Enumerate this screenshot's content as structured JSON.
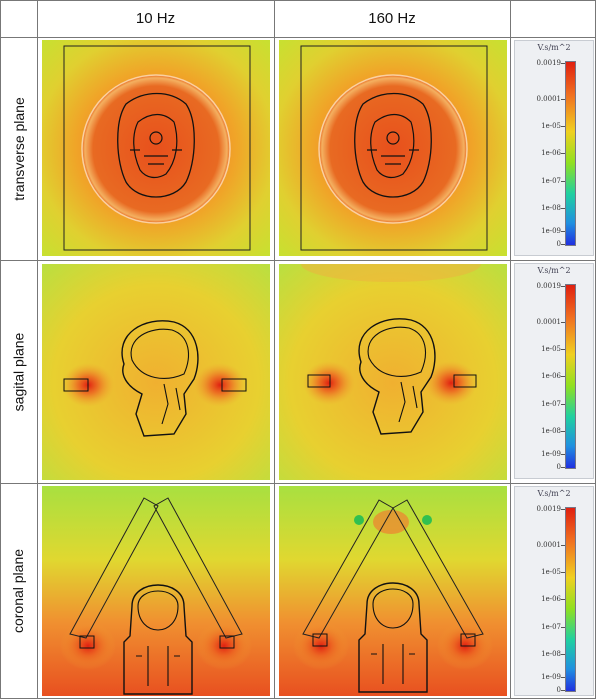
{
  "header": {
    "columns": [
      "10 Hz",
      "160 Hz"
    ]
  },
  "rows": [
    "transverse plane",
    "sagital plane",
    "coronal plane"
  ],
  "colorbar": {
    "unit": "V.s/m^2",
    "ticks": [
      "0.0019",
      "0.0001",
      "1e-05",
      "1e-06",
      "1e-07",
      "1e-08",
      "1e-09",
      "0"
    ]
  }
}
